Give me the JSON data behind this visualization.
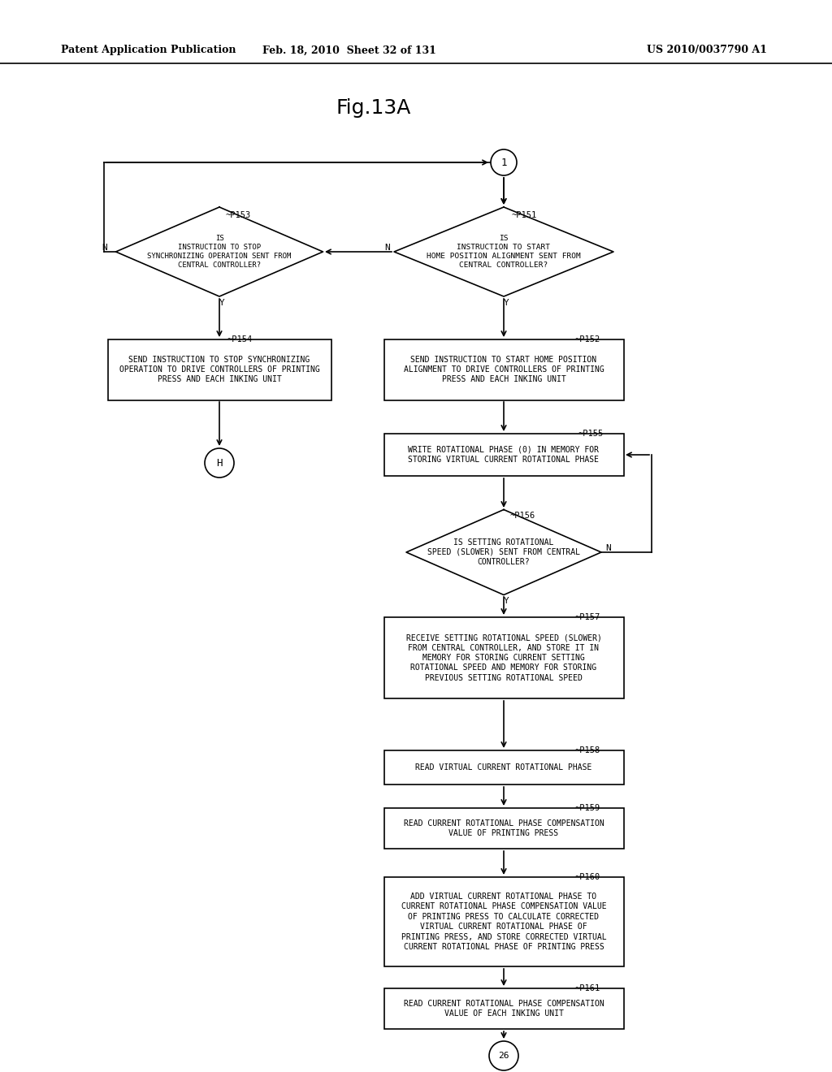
{
  "title": "Fig.13A",
  "header_left": "Patent Application Publication",
  "header_mid": "Feb. 18, 2010  Sheet 32 of 131",
  "header_right": "US 2010/0037790 A1",
  "bg_color": "#ffffff"
}
